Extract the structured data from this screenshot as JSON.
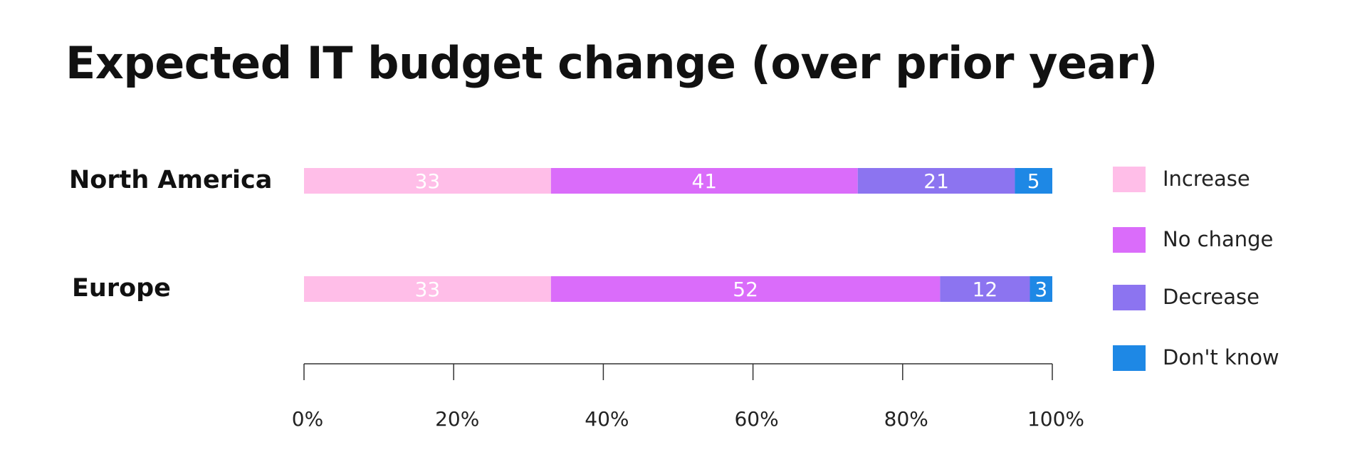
{
  "chart_data": {
    "type": "bar",
    "orientation": "horizontal",
    "stacked": true,
    "title": "Expected IT budget change (over prior year)",
    "categories": [
      "North America",
      "Europe"
    ],
    "series": [
      {
        "name": "Increase",
        "values": [
          33,
          33
        ],
        "color": "#FFBEE8"
      },
      {
        "name": "No change",
        "values": [
          41,
          52
        ],
        "color": "#DA6CFA"
      },
      {
        "name": "Decrease",
        "values": [
          21,
          12
        ],
        "color": "#8C74F0"
      },
      {
        "name": "Don't know",
        "values": [
          5,
          3
        ],
        "color": "#1E88E5"
      }
    ],
    "xlim": [
      0,
      100
    ],
    "x_ticks": [
      "0%",
      "20%",
      "40%",
      "60%",
      "80%",
      "100%"
    ],
    "legend_position": "right",
    "grid": false
  }
}
